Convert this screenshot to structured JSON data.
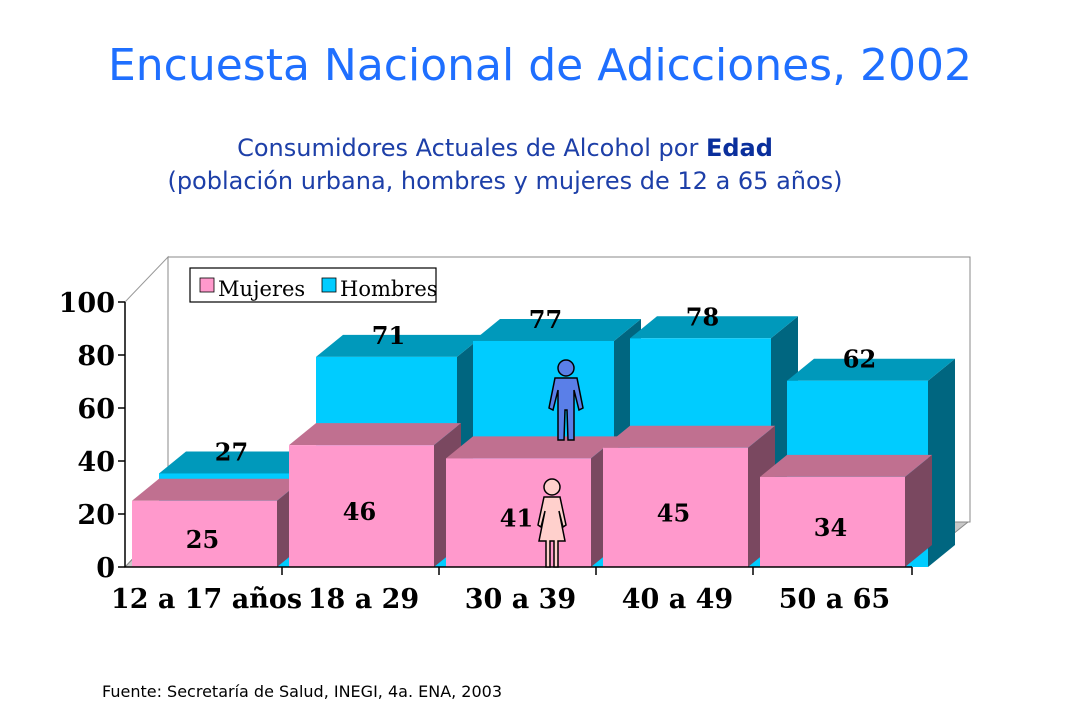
{
  "title": "Encuesta Nacional de Adicciones, 2002",
  "subtitle": {
    "line1_prefix": "Consumidores Actuales de Alcohol por ",
    "line1_bold": "Edad",
    "line2": "(población urbana,  hombres y mujeres de 12 a 65 años)"
  },
  "source": "Fuente: Secretaría de Salud, INEGI, 4a. ENA, 2003",
  "colors": {
    "mujeres_front": "#ff99cc",
    "mujeres_top": "#c07090",
    "mujeres_side": "#7a4860",
    "hombres_front": "#00ccff",
    "hombres_top": "#0099bb",
    "hombres_side": "#006680"
  },
  "chart_data": {
    "type": "bar",
    "categories": [
      "12 a 17 años",
      "18 a 29",
      "30 a 39",
      "40 a 49",
      "50 a 65"
    ],
    "series": [
      {
        "name": "Mujeres",
        "values": [
          25,
          46,
          41,
          45,
          34
        ]
      },
      {
        "name": "Hombres",
        "values": [
          27,
          71,
          77,
          78,
          62
        ]
      }
    ],
    "ylim": [
      0,
      100
    ],
    "yticks": [
      "0",
      "20",
      "40",
      "60",
      "80",
      "100"
    ],
    "legend_position": "top-left",
    "grid": false
  }
}
